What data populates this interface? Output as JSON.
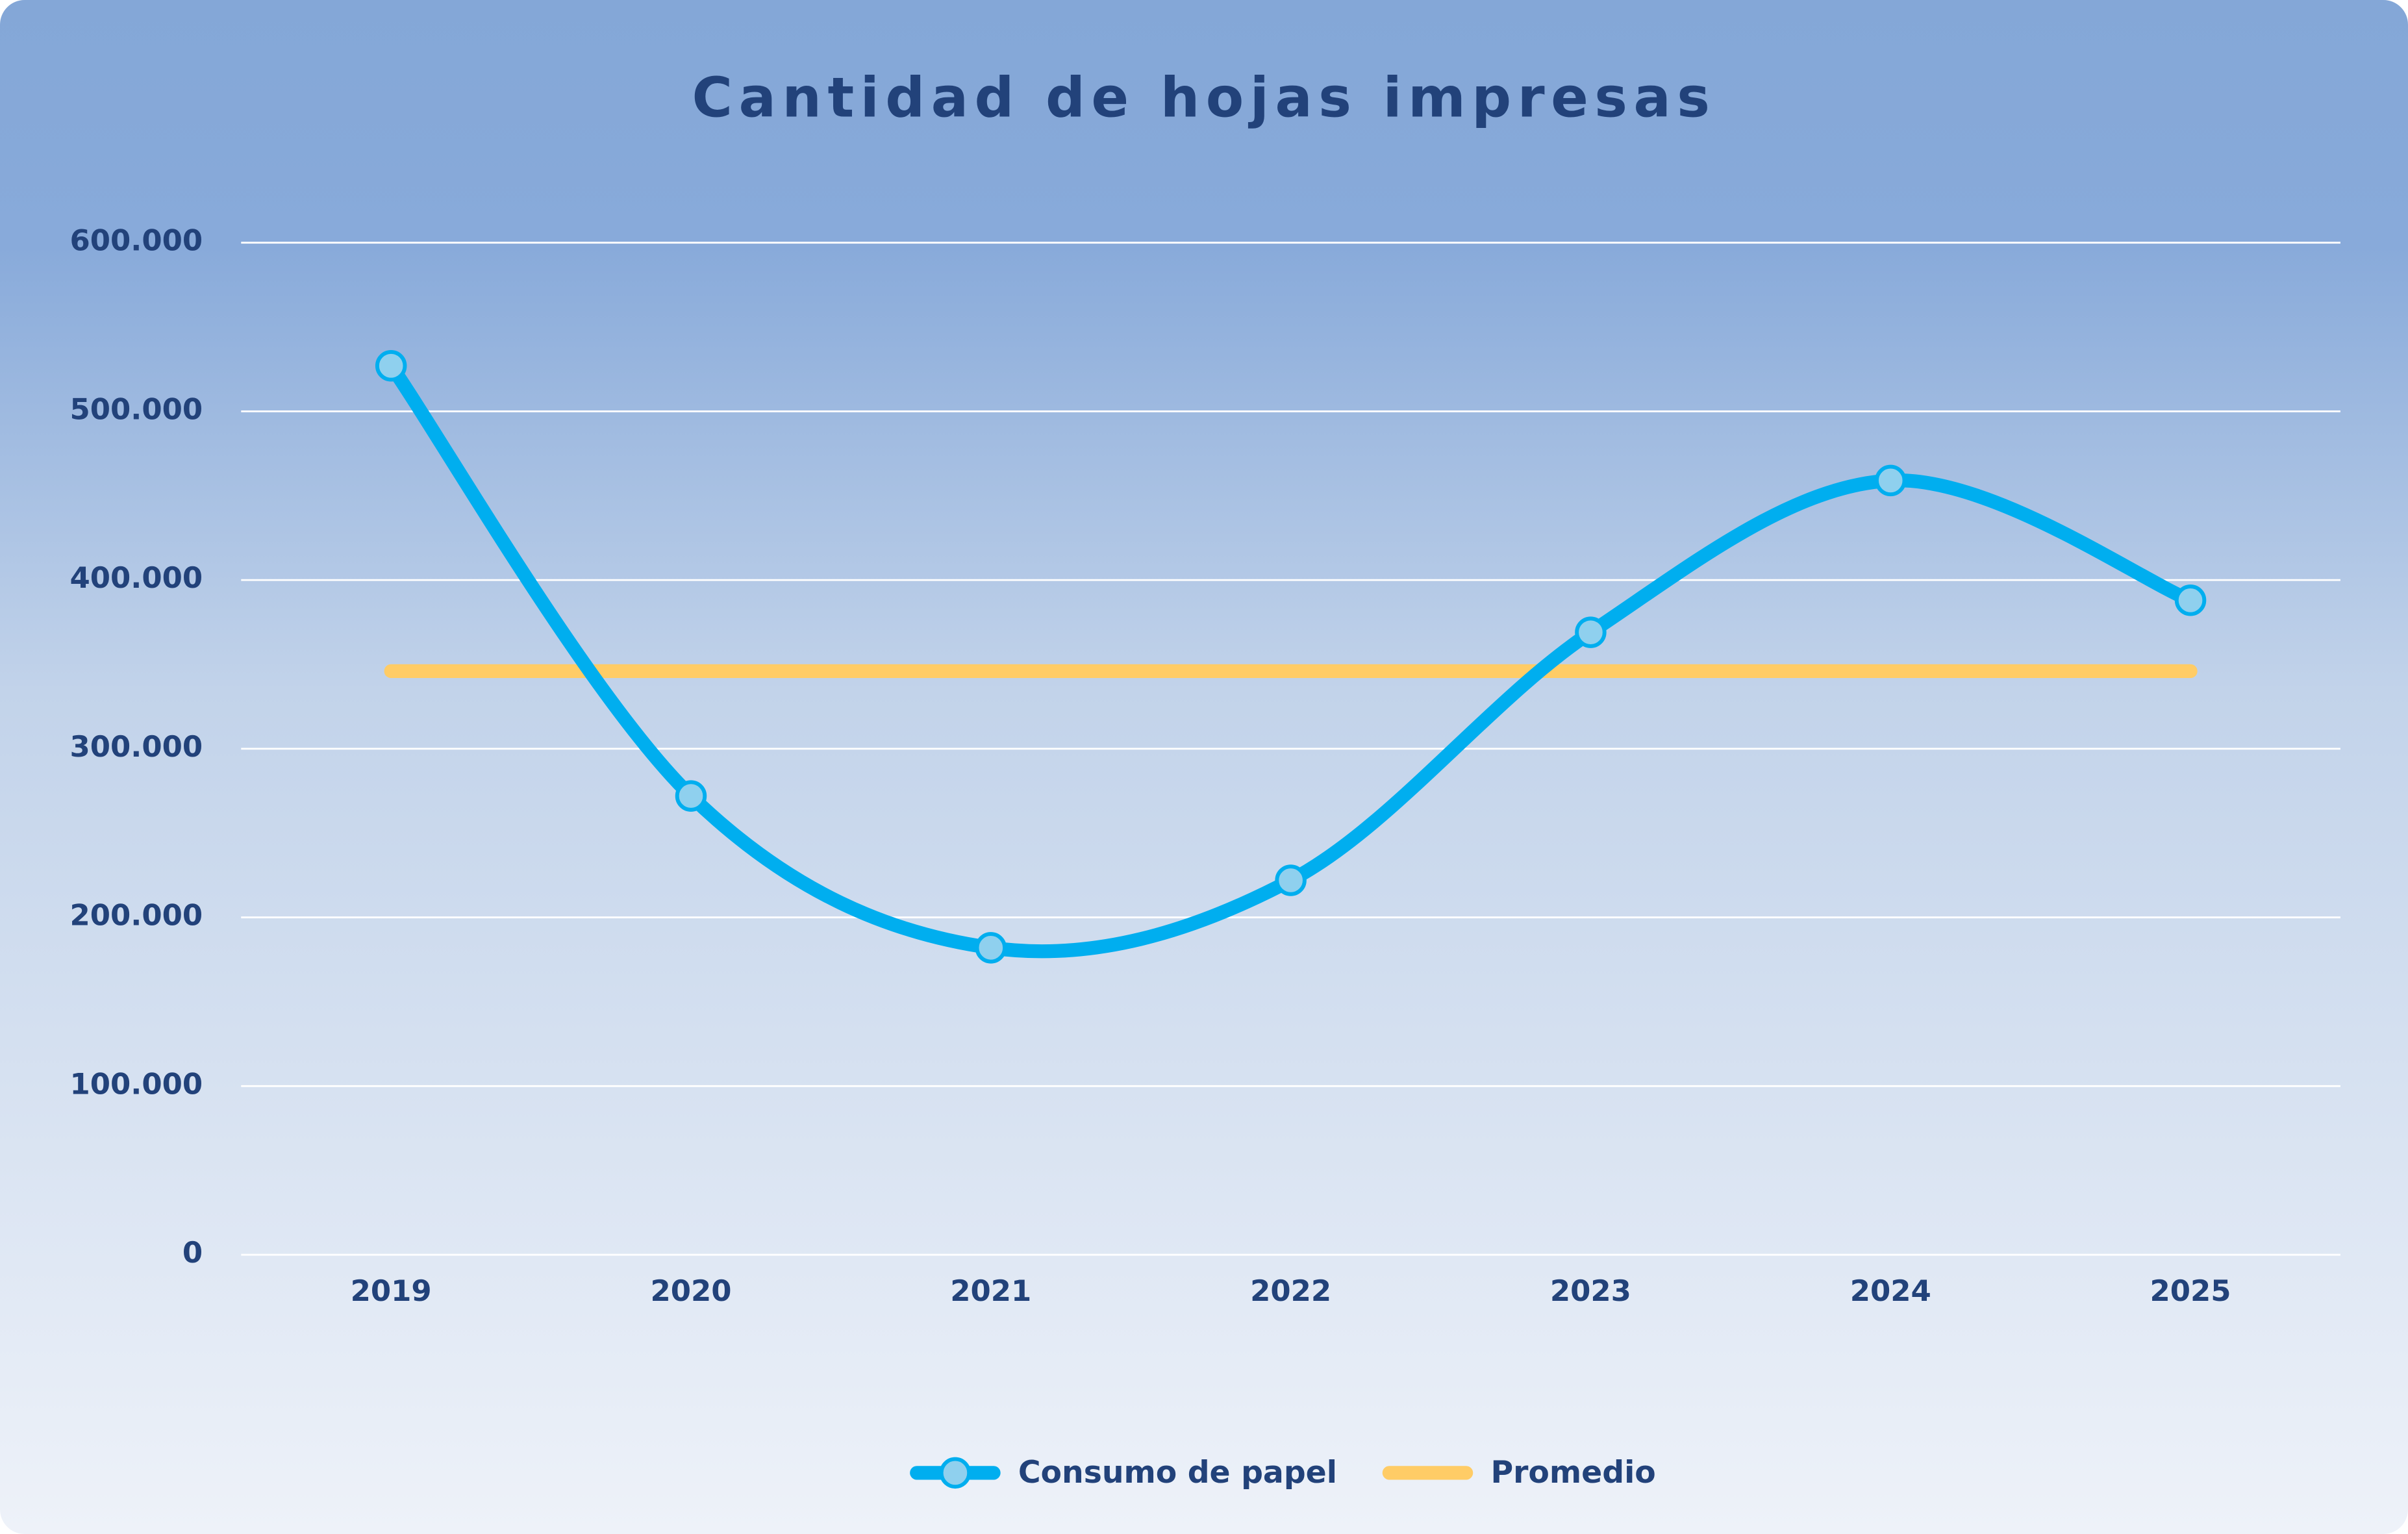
{
  "chart_data": {
    "type": "line",
    "title": "Cantidad de hojas impresas",
    "categories": [
      "2019",
      "2020",
      "2021",
      "2022",
      "2023",
      "2024",
      "2025"
    ],
    "series": [
      {
        "name": "Consumo de papel",
        "color": "#00aeef",
        "smooth": true,
        "markers": true,
        "values": [
          527000,
          272000,
          182000,
          222000,
          369000,
          459000,
          388000
        ]
      },
      {
        "name": "Promedio",
        "color": "#ffcc66",
        "smooth": false,
        "markers": false,
        "values": [
          346000,
          346000,
          346000,
          346000,
          346000,
          346000,
          346000
        ]
      }
    ],
    "ylim": [
      0,
      600000
    ],
    "yticks": [
      0,
      {
        "value": 100000,
        "label": "100.000"
      },
      {
        "value": 200000,
        "label": "200.000"
      },
      {
        "value": 300000,
        "label": "300.000"
      },
      {
        "value": 400000,
        "label": "400.000"
      },
      {
        "value": 500000,
        "label": "500.000"
      },
      {
        "value": 600000,
        "label": "600.000"
      }
    ],
    "grid": true,
    "legend": "bottom"
  }
}
